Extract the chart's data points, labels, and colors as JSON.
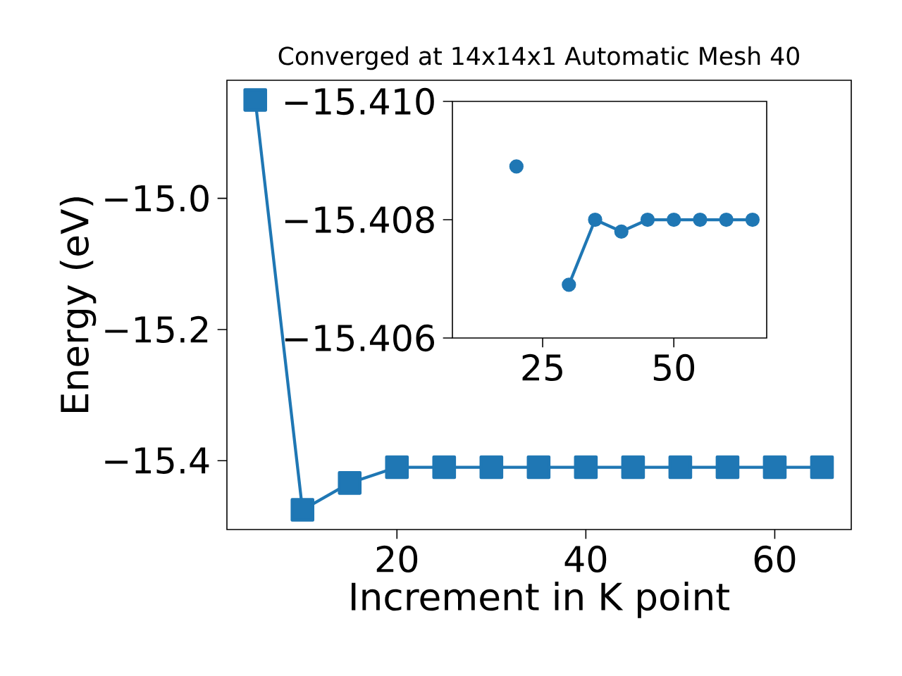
{
  "chart_data": [
    {
      "type": "line",
      "title": "Converged at 14x14x1 Automatic Mesh 40",
      "xlabel": "Increment in K point",
      "ylabel": "Energy (eV)",
      "x": [
        5,
        10,
        15,
        20,
        25,
        30,
        35,
        40,
        45,
        50,
        55,
        60,
        65
      ],
      "series": [
        {
          "color": "#1f77b4",
          "values": [
            -14.85,
            -15.475,
            -15.434,
            -15.41,
            -15.41,
            -15.41,
            -15.41,
            -15.41,
            -15.41,
            -15.41,
            -15.41,
            -15.41,
            -15.41
          ]
        }
      ],
      "xlim": [
        2,
        68.1
      ],
      "ylim": [
        -15.505,
        -14.82
      ],
      "xticks": [
        20,
        40,
        60
      ],
      "yticks": [
        {
          "value": -15.4,
          "label": "−15.4"
        },
        {
          "value": -15.2,
          "label": "−15.2"
        },
        {
          "value": -15.0,
          "label": "−15.0"
        }
      ],
      "marker": "square"
    },
    {
      "type": "line",
      "x": [
        20,
        25,
        30,
        35,
        40,
        45,
        50,
        55,
        60,
        65
      ],
      "series": [
        {
          "color": "#1f77b4",
          "values": [
            -15.4089,
            null,
            -15.4069,
            -15.408,
            -15.4078,
            -15.408,
            -15.408,
            -15.408,
            -15.408,
            -15.408
          ]
        }
      ],
      "xlim": [
        7.8,
        67.7
      ],
      "ylim": [
        -15.406,
        -15.41
      ],
      "xticks": [
        25,
        50
      ],
      "yticks": [
        {
          "value": -15.41,
          "label": "−15.410"
        },
        {
          "value": -15.408,
          "label": "−15.408"
        },
        {
          "value": -15.406,
          "label": "−15.406"
        }
      ],
      "marker": "circle"
    }
  ]
}
